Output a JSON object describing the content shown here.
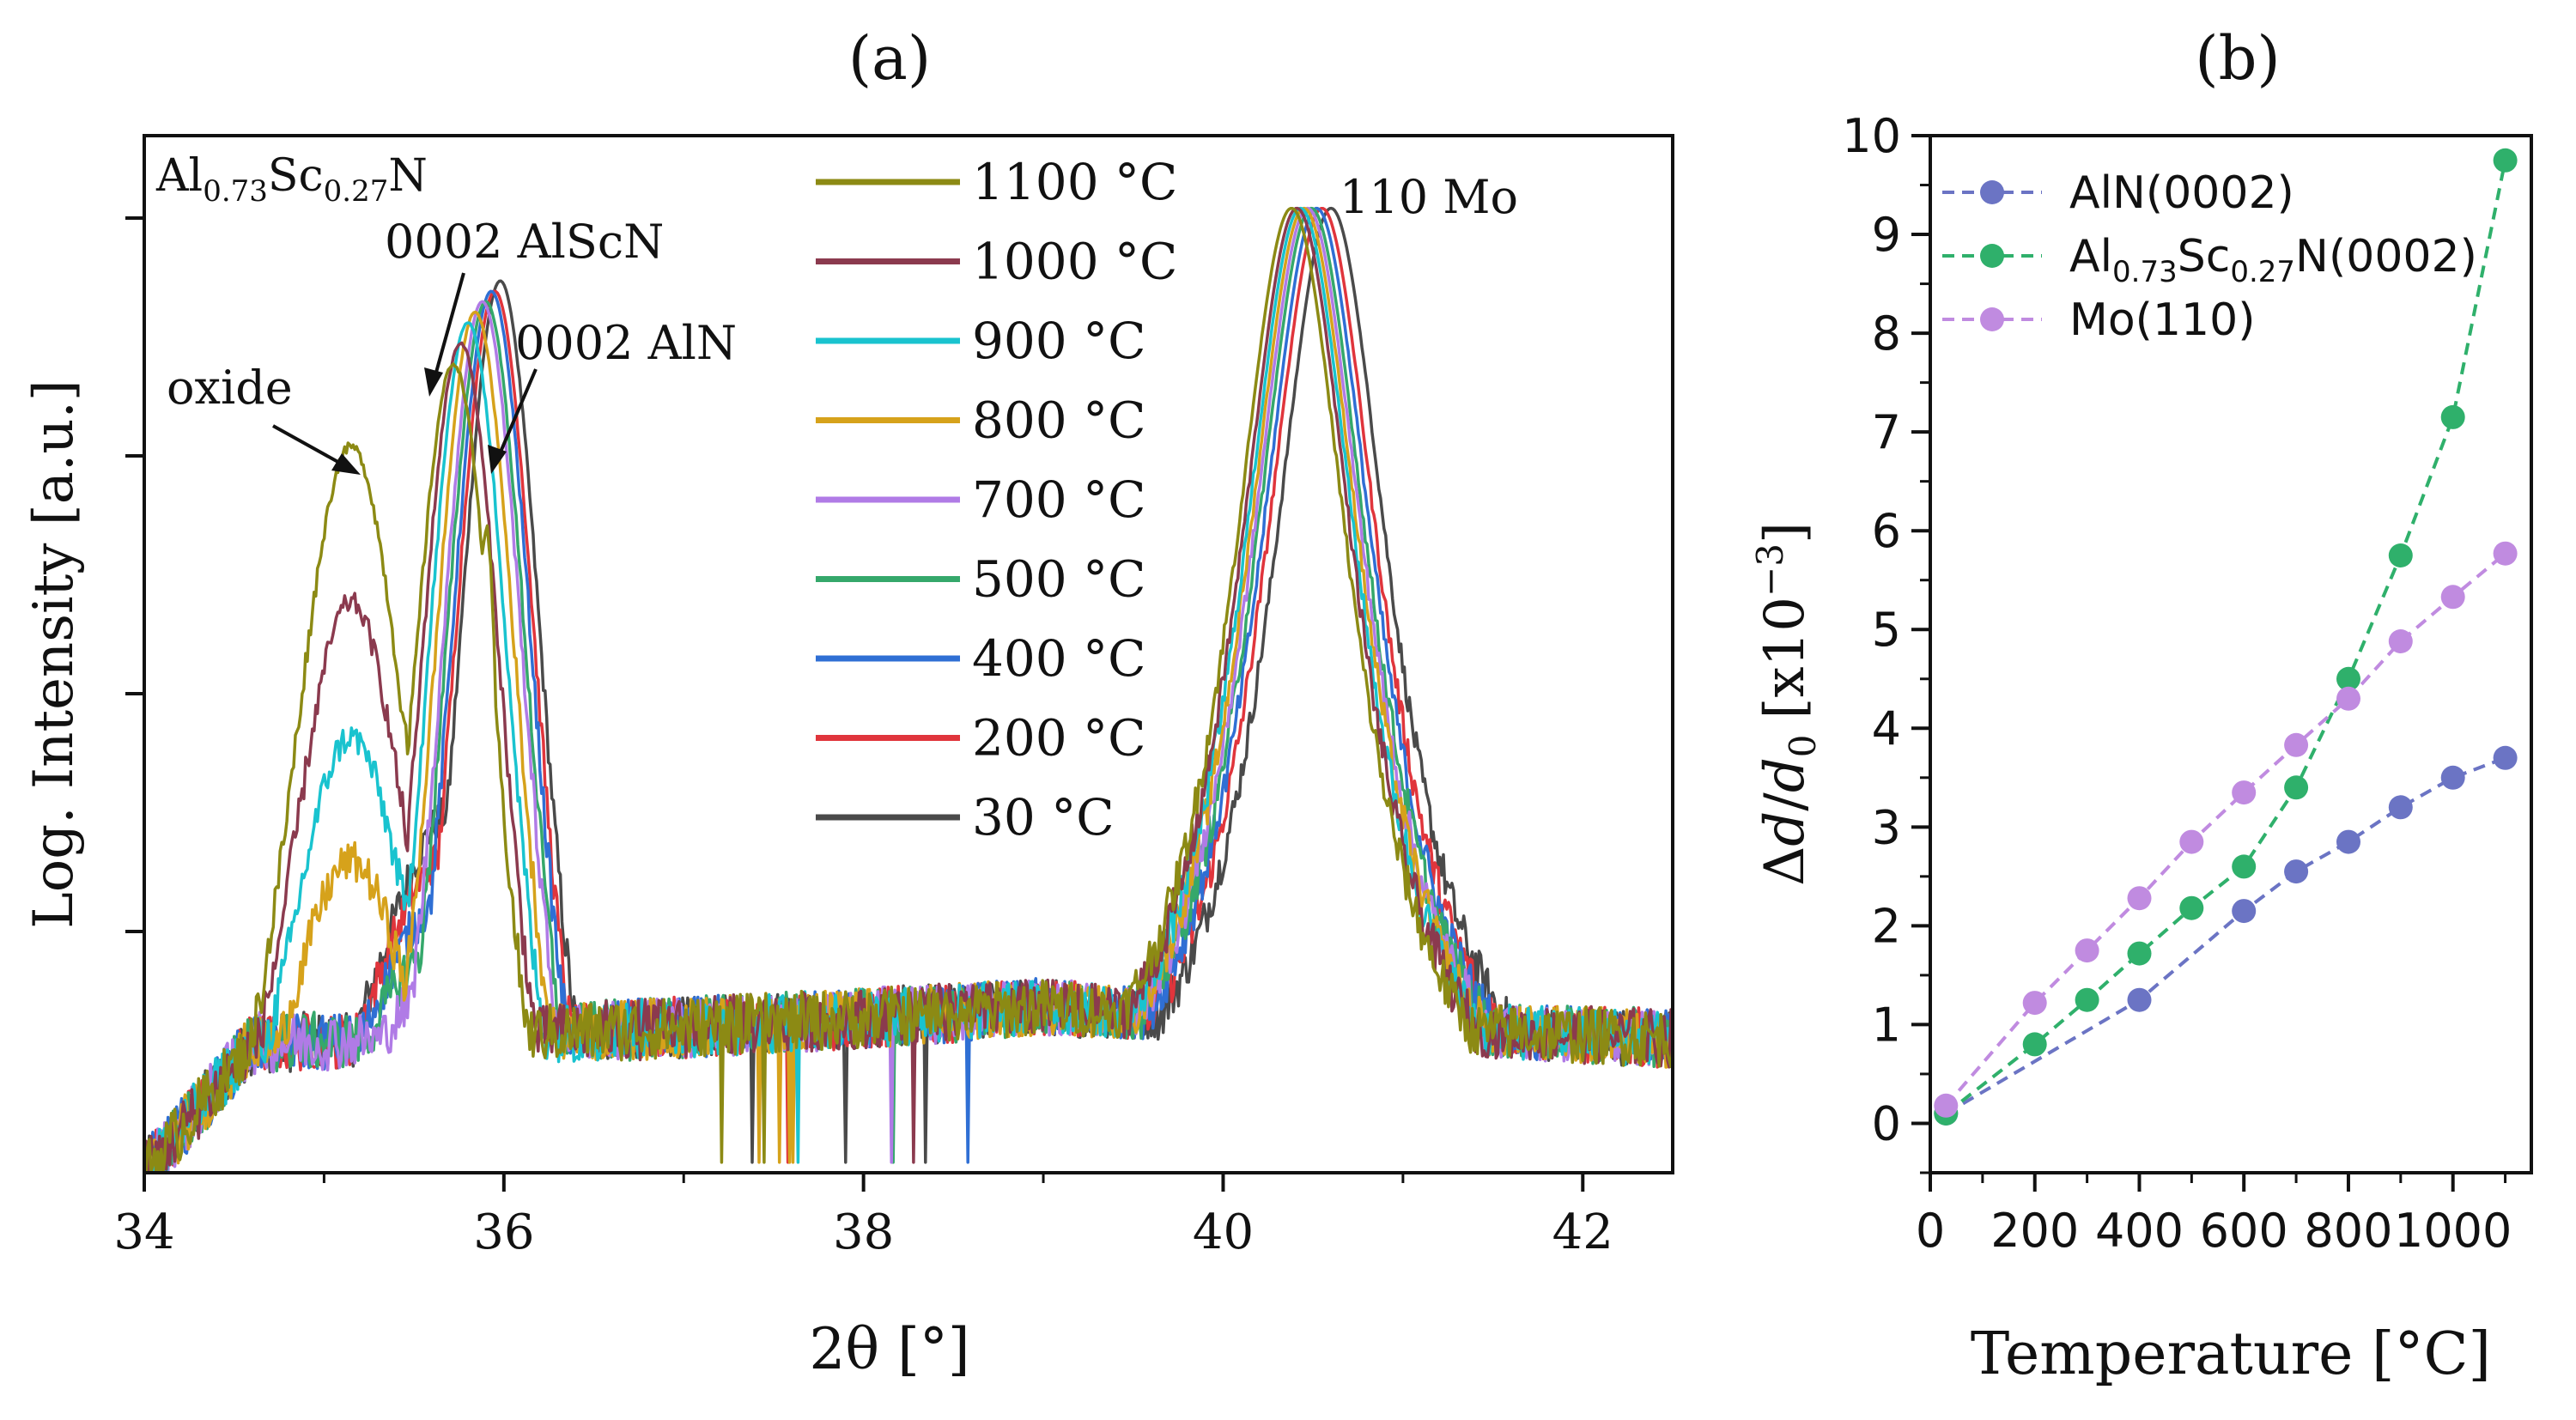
{
  "chart_data": [
    {
      "type": "line",
      "panel_label": "(a)",
      "xlabel": "2θ [°]",
      "ylabel": "Log. Intensity [a.u.]",
      "xlim": [
        34,
        42.5
      ],
      "xticks": [
        "34",
        "36",
        "38",
        "40",
        "42"
      ],
      "yscale": "log",
      "sample_label": {
        "base1": "Al",
        "sub1": "0.73",
        "base2": "Sc",
        "sub2": "0.27",
        "base3": "N"
      },
      "annotations": [
        {
          "text": "oxide",
          "x": 35.25
        },
        {
          "text": "0002 AlScN",
          "x": 35.7
        },
        {
          "text": "0002 AlN",
          "x": 35.9
        },
        {
          "text": "110 Mo",
          "x": 40.4
        }
      ],
      "legend": "top-center",
      "series": [
        {
          "name": "1100 °C",
          "color": "#8c8a14",
          "mo_peak": 40.38,
          "main_peak": 35.72,
          "main_height": 0.78,
          "oxide": 0.7,
          "aln_shoulder": 0.62
        },
        {
          "name": "1000 °C",
          "color": "#8b3a4e",
          "mo_peak": 40.41,
          "main_peak": 35.76,
          "main_height": 0.8,
          "oxide": 0.55,
          "aln_shoulder": 0.0
        },
        {
          "name": "900 °C",
          "color": "#19c3cf",
          "mo_peak": 40.43,
          "main_peak": 35.8,
          "main_height": 0.82,
          "oxide": 0.42,
          "aln_shoulder": 0.0
        },
        {
          "name": "800 °C",
          "color": "#d6a21b",
          "mo_peak": 40.45,
          "main_peak": 35.84,
          "main_height": 0.83,
          "oxide": 0.3,
          "aln_shoulder": 0.0
        },
        {
          "name": "700 °C",
          "color": "#b07be6",
          "mo_peak": 40.47,
          "main_peak": 35.88,
          "main_height": 0.84,
          "oxide": 0.0,
          "aln_shoulder": 0.0
        },
        {
          "name": "500 °C",
          "color": "#35a86b",
          "mo_peak": 40.49,
          "main_peak": 35.9,
          "main_height": 0.84,
          "oxide": 0.0,
          "aln_shoulder": 0.0
        },
        {
          "name": "400 °C",
          "color": "#2f6fd4",
          "mo_peak": 40.52,
          "main_peak": 35.93,
          "main_height": 0.85,
          "oxide": 0.0,
          "aln_shoulder": 0.0
        },
        {
          "name": "200 °C",
          "color": "#e0353c",
          "mo_peak": 40.55,
          "main_peak": 35.95,
          "main_height": 0.85,
          "oxide": 0.0,
          "aln_shoulder": 0.0
        },
        {
          "name": "30 °C",
          "color": "#4a4a4a",
          "mo_peak": 40.6,
          "main_peak": 35.98,
          "main_height": 0.86,
          "oxide": 0.0,
          "aln_shoulder": 0.0
        }
      ]
    },
    {
      "type": "scatter",
      "panel_label": "(b)",
      "xlabel": "Temperature [°C]",
      "ylabel_parts": {
        "delta": "Δ",
        "d": "d",
        "slash": "/",
        "d0": "d",
        "sub0": "0",
        "unit": "[x10",
        "exp": "−3",
        "close": "]"
      },
      "xlim": [
        0,
        1150
      ],
      "ylim": [
        -0.5,
        10
      ],
      "xticks": [
        "0",
        "200",
        "400",
        "600",
        "800",
        "1000"
      ],
      "yticks": [
        "0",
        "1",
        "2",
        "3",
        "4",
        "5",
        "6",
        "7",
        "8",
        "9",
        "10"
      ],
      "legend": "top-left",
      "series": [
        {
          "name": "AlN(0002)",
          "color": "#6b74c4",
          "x": [
            30,
            400,
            600,
            700,
            800,
            900,
            1000,
            1100
          ],
          "y": [
            0.1,
            1.25,
            2.15,
            2.55,
            2.85,
            3.2,
            3.5,
            3.7
          ]
        },
        {
          "name_parts": {
            "base1": "Al",
            "sub1": "0.73",
            "base2": "Sc",
            "sub2": "0.27",
            "base3": "N(0002)"
          },
          "color": "#2fb06b",
          "x": [
            30,
            200,
            300,
            400,
            500,
            600,
            700,
            800,
            900,
            1000,
            1100
          ],
          "y": [
            0.1,
            0.8,
            1.25,
            1.72,
            2.18,
            2.6,
            3.4,
            4.5,
            5.75,
            7.15,
            9.75
          ]
        },
        {
          "name": "Mo(110)",
          "color": "#c08be0",
          "x": [
            30,
            200,
            300,
            400,
            500,
            600,
            700,
            800,
            900,
            1000,
            1100
          ],
          "y": [
            0.18,
            1.22,
            1.75,
            2.28,
            2.85,
            3.35,
            3.83,
            4.3,
            4.88,
            5.33,
            5.77
          ]
        }
      ]
    }
  ]
}
